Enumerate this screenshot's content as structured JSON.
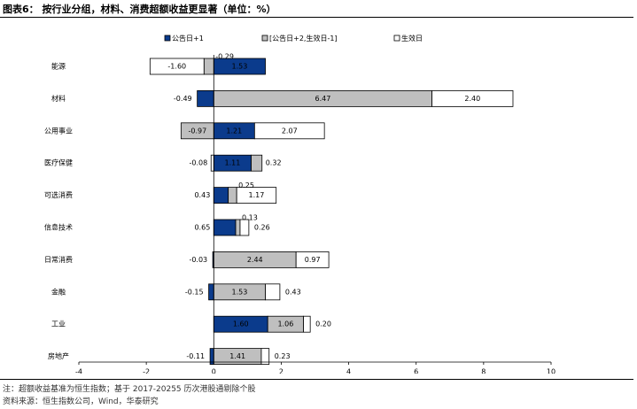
{
  "header": {
    "title": "图表6：  按行业分组，材料、消费超额收益更显著（单位：%）"
  },
  "footer": {
    "note": "注：超额收益基准为恒生指数；基于 2017-20255 历次港股通剔除个股",
    "source": "资料来源：恒生指数公司，Wind，华泰研究"
  },
  "colors": {
    "series1": "#0b3b8c",
    "series2": "#bfbfbf",
    "series3": "#ffffff",
    "border": "#000000"
  },
  "chart_data": {
    "type": "bar",
    "orientation": "horizontal",
    "stacked": true,
    "categories": [
      "能源",
      "材料",
      "公用事业",
      "医疗保健",
      "可选消费",
      "信息技术",
      "日常消费",
      "金融",
      "工业",
      "房地产"
    ],
    "series": [
      {
        "name": "公告日+1",
        "values": [
          1.53,
          -0.49,
          1.21,
          1.11,
          0.43,
          0.65,
          -0.03,
          -0.15,
          1.6,
          -0.11
        ],
        "labels": [
          "1.53",
          "-0.49",
          "1.21",
          "1.11",
          "0.43",
          "0.65",
          "-0.03",
          "-0.15",
          "1.60",
          "-0.11"
        ]
      },
      {
        "name": "[公告日+2,生效日-1]",
        "values": [
          -0.29,
          6.47,
          -0.97,
          0.32,
          0.25,
          0.13,
          2.44,
          1.53,
          1.06,
          1.41
        ],
        "labels": [
          "-0.29",
          "6.47",
          "-0.97",
          "0.32",
          "0.25",
          "0.13",
          "2.44",
          "1.53",
          "1.06",
          "1.41"
        ]
      },
      {
        "name": "生效日",
        "values": [
          -1.6,
          2.4,
          2.07,
          -0.08,
          1.17,
          0.26,
          0.97,
          0.43,
          0.2,
          0.23
        ],
        "labels": [
          "-1.60",
          "2.40",
          "2.07",
          "-0.08",
          "1.17",
          "0.26",
          "0.97",
          "0.43",
          "0.20",
          "0.23"
        ]
      }
    ],
    "xlim": [
      -4,
      10
    ],
    "xticks": [
      "-4",
      "-2",
      "0",
      "2",
      "4",
      "6",
      "8",
      "10"
    ],
    "legend_position": "top",
    "grid": false
  }
}
